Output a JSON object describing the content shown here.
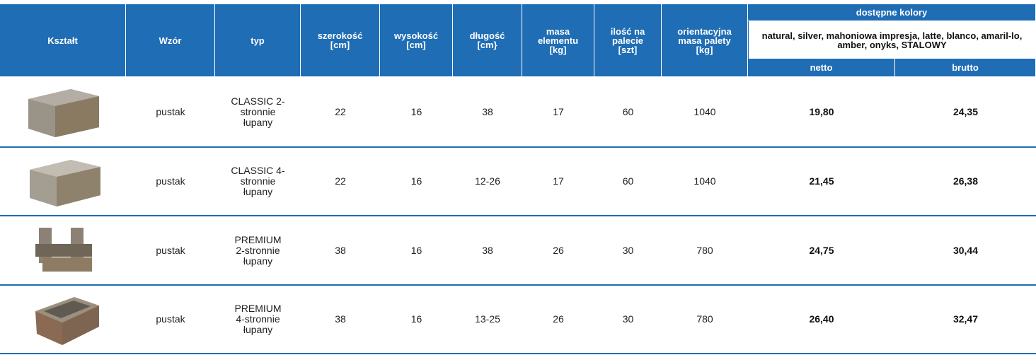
{
  "header": {
    "columns": [
      "Kształt",
      "Wzór",
      "typ",
      "szerokość [cm]",
      "wysokość [cm]",
      "długość [cm}",
      "masa elementu [kg]",
      "ilość na palecie [szt]",
      "orientacyjna masa palety [kg]"
    ],
    "colors_title": "dostępne kolory",
    "colors_list": "natural, silver, mahoniowa impresja, latte, blanco, amaril-lo, amber, onyks, STALOWY",
    "netto": "netto",
    "brutto": "brutto"
  },
  "rows": [
    [
      "pustak",
      "CLASSIC 2-stronnie łupany",
      "22",
      "16",
      "38",
      "17",
      "60",
      "1040",
      "19,80",
      "24,35"
    ],
    [
      "pustak",
      "CLASSIC 4-stronnie łupany",
      "22",
      "16",
      "12-26",
      "17",
      "60",
      "1040",
      "21,45",
      "26,38"
    ],
    [
      "pustak",
      "PREMIUM 2-stronnie łupany",
      "38",
      "16",
      "38",
      "26",
      "30",
      "780",
      "24,75",
      "30,44"
    ],
    [
      "pustak",
      "PREMIUM 4-stronnie łupany",
      "38",
      "16",
      "13-25",
      "26",
      "30",
      "780",
      "26,40",
      "32,47"
    ]
  ]
}
